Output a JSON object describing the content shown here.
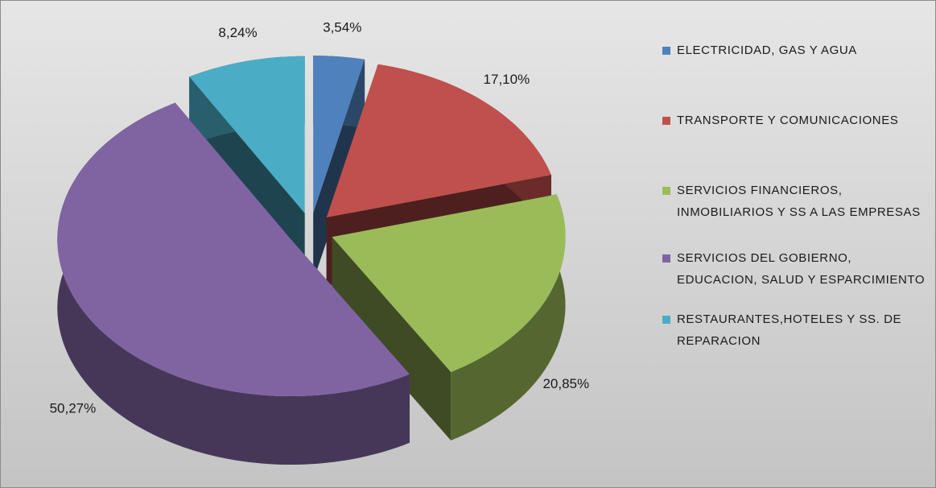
{
  "chart_data": {
    "type": "pie",
    "categories": [
      "ELECTRICIDAD, GAS Y AGUA",
      "TRANSPORTE Y COMUNICACIONES",
      "SERVICIOS FINANCIEROS, INMOBILIARIOS Y SS A LAS EMPRESAS",
      "SERVICIOS DEL GOBIERNO, EDUCACION, SALUD Y ESPARCIMIENTO",
      "RESTAURANTES,HOTELES Y SS. DE REPARACION"
    ],
    "values": [
      3.54,
      17.1,
      20.85,
      50.27,
      8.24
    ],
    "value_labels": [
      "3,54%",
      "17,10%",
      "20,85%",
      "50,27%",
      "8,24%"
    ],
    "colors": [
      "#4f81bd",
      "#c0504d",
      "#9bbb59",
      "#8064a2",
      "#4bacc6"
    ],
    "legend": "right"
  }
}
